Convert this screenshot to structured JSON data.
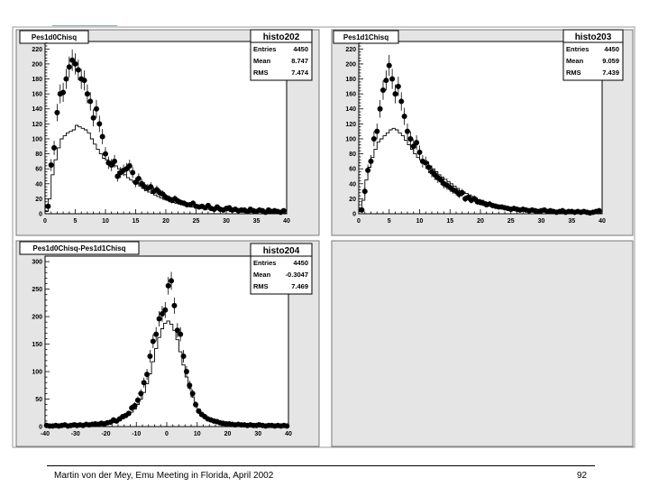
{
  "footer": {
    "text": "Martin von der Mey, Emu Meeting in Florida, April 2002",
    "page": "92"
  },
  "colors": {
    "pad_bg": "#e5e5e5",
    "frame_bg": "#ffffff",
    "ink": "#000000"
  },
  "chart_data": [
    {
      "type": "histogram",
      "title": "Pes1d0Chisq",
      "stats": {
        "name": "histo202",
        "labels": [
          "Entries",
          "Mean",
          "RMS"
        ],
        "values": [
          "4450",
          "8.747",
          "7.474"
        ]
      },
      "xlim": [
        0,
        40
      ],
      "ylim": [
        0,
        230
      ],
      "xticks": [
        0,
        5,
        10,
        15,
        20,
        25,
        30,
        35,
        40
      ],
      "yticks": [
        0,
        20,
        40,
        60,
        80,
        100,
        120,
        140,
        160,
        180,
        200,
        220
      ],
      "series": [
        {
          "name": "histogram",
          "bin_width": 0.5,
          "x": [
            0,
            0.5,
            1,
            1.5,
            2,
            2.5,
            3,
            3.5,
            4,
            4.5,
            5,
            5.5,
            6,
            6.5,
            7,
            7.5,
            8,
            8.5,
            9,
            9.5,
            10,
            10.5,
            11,
            11.5,
            12,
            12.5,
            13,
            13.5,
            14,
            14.5,
            15,
            15.5,
            16,
            16.5,
            17,
            17.5,
            18,
            18.5,
            19,
            19.5,
            20,
            20.5,
            21,
            21.5,
            22,
            22.5,
            23,
            23.5,
            24,
            24.5,
            25,
            25.5,
            26,
            26.5,
            27,
            27.5,
            28,
            28.5,
            29,
            29.5,
            30,
            30.5,
            31,
            31.5,
            32,
            32.5,
            33,
            33.5,
            34,
            34.5,
            35,
            35.5,
            36,
            36.5,
            37,
            37.5,
            38,
            38.5,
            39,
            39.5
          ],
          "y": [
            3,
            20,
            52,
            72,
            88,
            100,
            104,
            108,
            110,
            112,
            118,
            116,
            114,
            112,
            108,
            100,
            93,
            86,
            80,
            74,
            72,
            70,
            67,
            64,
            60,
            56,
            52,
            48,
            45,
            42,
            40,
            37,
            34,
            31,
            29,
            27,
            25,
            23,
            21,
            19,
            18,
            16,
            15,
            14,
            13,
            12,
            11,
            10,
            9,
            9,
            8,
            7,
            7,
            6,
            6,
            5,
            5,
            5,
            4,
            4,
            4,
            3,
            3,
            3,
            3,
            2,
            2,
            2,
            2,
            2,
            2,
            2,
            1,
            1,
            1,
            1,
            1,
            1,
            1,
            1
          ]
        },
        {
          "name": "points",
          "x": [
            0.5,
            1,
            1.5,
            2,
            2.5,
            3,
            3.5,
            4,
            4.5,
            5,
            5.5,
            6,
            6.5,
            7,
            7.5,
            8,
            8.5,
            9,
            9.5,
            10,
            10.5,
            11,
            11.5,
            12,
            12.5,
            13,
            13.5,
            14,
            14.5,
            15,
            15.5,
            16,
            16.5,
            17,
            17.5,
            18,
            18.5,
            19,
            19.5,
            20,
            20.5,
            21,
            21.5,
            22,
            22.5,
            23,
            23.5,
            24,
            24.5,
            25,
            25.5,
            26,
            26.5,
            27,
            27.5,
            28,
            28.5,
            29,
            29.5,
            30,
            30.5,
            31,
            31.5,
            32,
            32.5,
            33,
            33.5,
            34,
            34.5,
            35,
            35.5,
            36,
            36.5,
            37,
            37.5,
            38,
            38.5,
            39,
            39.5
          ],
          "y": [
            10,
            65,
            88,
            135,
            160,
            162,
            180,
            196,
            205,
            200,
            192,
            180,
            178,
            160,
            150,
            128,
            140,
            120,
            103,
            80,
            68,
            65,
            70,
            50,
            55,
            58,
            60,
            64,
            55,
            42,
            47,
            40,
            36,
            34,
            36,
            30,
            32,
            28,
            26,
            22,
            20,
            18,
            20,
            17,
            15,
            14,
            12,
            12,
            14,
            10,
            9,
            10,
            8,
            11,
            7,
            6,
            9,
            6,
            5,
            7,
            8,
            5,
            6,
            4,
            5,
            5,
            3,
            6,
            4,
            3,
            5,
            4,
            2,
            5,
            3,
            4,
            3,
            2,
            4
          ]
        }
      ]
    },
    {
      "type": "histogram",
      "title": "Pes1d1Chisq",
      "stats": {
        "name": "histo203",
        "labels": [
          "Entries",
          "Mean",
          "RMS"
        ],
        "values": [
          "4450",
          "9.059",
          "7.439"
        ]
      },
      "xlim": [
        0,
        40
      ],
      "ylim": [
        0,
        230
      ],
      "xticks": [
        0,
        5,
        10,
        15,
        20,
        25,
        30,
        35,
        40
      ],
      "yticks": [
        0,
        20,
        40,
        60,
        80,
        100,
        120,
        140,
        160,
        180,
        200,
        220
      ],
      "series": [
        {
          "name": "histogram",
          "bin_width": 0.5,
          "x": [
            0,
            0.5,
            1,
            1.5,
            2,
            2.5,
            3,
            3.5,
            4,
            4.5,
            5,
            5.5,
            6,
            6.5,
            7,
            7.5,
            8,
            8.5,
            9,
            9.5,
            10,
            10.5,
            11,
            11.5,
            12,
            12.5,
            13,
            13.5,
            14,
            14.5,
            15,
            15.5,
            16,
            16.5,
            17,
            17.5,
            18,
            18.5,
            19,
            19.5,
            20,
            20.5,
            21,
            21.5,
            22,
            22.5,
            23,
            23.5,
            24,
            24.5,
            25,
            25.5,
            26,
            26.5,
            27,
            27.5,
            28,
            28.5,
            29,
            29.5,
            30,
            30.5,
            31,
            31.5,
            32,
            32.5,
            33,
            33.5,
            34,
            34.5,
            35,
            35.5,
            36,
            36.5,
            37,
            37.5,
            38,
            38.5,
            39,
            39.5
          ],
          "y": [
            3,
            18,
            45,
            62,
            75,
            86,
            96,
            100,
            104,
            108,
            112,
            114,
            112,
            108,
            104,
            98,
            92,
            86,
            80,
            75,
            72,
            70,
            68,
            64,
            60,
            56,
            52,
            49,
            46,
            43,
            40,
            37,
            34,
            31,
            29,
            27,
            25,
            23,
            21,
            19,
            18,
            16,
            15,
            14,
            13,
            12,
            11,
            10,
            9,
            9,
            8,
            7,
            7,
            6,
            6,
            5,
            5,
            5,
            4,
            4,
            4,
            3,
            3,
            3,
            3,
            2,
            2,
            2,
            2,
            2,
            2,
            2,
            1,
            1,
            1,
            1,
            1,
            1,
            1,
            1
          ]
        },
        {
          "name": "points",
          "x": [
            0.5,
            1,
            1.5,
            2,
            2.5,
            3,
            3.5,
            4,
            4.5,
            5,
            5.5,
            6,
            6.5,
            7,
            7.5,
            8,
            8.5,
            9,
            9.5,
            10,
            10.5,
            11,
            11.5,
            12,
            12.5,
            13,
            13.5,
            14,
            14.5,
            15,
            15.5,
            16,
            16.5,
            17,
            17.5,
            18,
            18.5,
            19,
            19.5,
            20,
            20.5,
            21,
            21.5,
            22,
            22.5,
            23,
            23.5,
            24,
            24.5,
            25,
            25.5,
            26,
            26.5,
            27,
            27.5,
            28,
            28.5,
            29,
            29.5,
            30,
            30.5,
            31,
            31.5,
            32,
            32.5,
            33,
            33.5,
            34,
            34.5,
            35,
            35.5,
            36,
            36.5,
            37,
            37.5,
            38,
            38.5,
            39,
            39.5
          ],
          "y": [
            5,
            30,
            58,
            70,
            100,
            110,
            140,
            165,
            178,
            198,
            180,
            160,
            170,
            150,
            130,
            110,
            100,
            90,
            95,
            82,
            70,
            68,
            62,
            56,
            52,
            48,
            45,
            40,
            38,
            35,
            32,
            30,
            26,
            28,
            20,
            22,
            18,
            20,
            16,
            15,
            14,
            12,
            13,
            11,
            10,
            9,
            9,
            8,
            7,
            6,
            7,
            6,
            5,
            6,
            5,
            4,
            5,
            4,
            3,
            4,
            5,
            3,
            4,
            3,
            2,
            3,
            4,
            2,
            3,
            3,
            2,
            3,
            2,
            3,
            2,
            1,
            2,
            3,
            4
          ]
        }
      ]
    },
    {
      "type": "histogram",
      "title": "Pes1d0Chisq-Pes1d1Chisq",
      "stats": {
        "name": "histo204",
        "labels": [
          "Entries",
          "Mean",
          "RMS"
        ],
        "values": [
          "4450",
          "-0.3047",
          "7.469"
        ]
      },
      "xlim": [
        -40,
        40
      ],
      "ylim": [
        0,
        310
      ],
      "xticks": [
        -40,
        -30,
        -20,
        -10,
        0,
        10,
        20,
        30,
        40
      ],
      "yticks": [
        0,
        50,
        100,
        150,
        200,
        250,
        300
      ],
      "series": [
        {
          "name": "histogram",
          "bin_width": 1,
          "x": [
            -40,
            -39,
            -38,
            -37,
            -36,
            -35,
            -34,
            -33,
            -32,
            -31,
            -30,
            -29,
            -28,
            -27,
            -26,
            -25,
            -24,
            -23,
            -22,
            -21,
            -20,
            -19,
            -18,
            -17,
            -16,
            -15,
            -14,
            -13,
            -12,
            -11,
            -10,
            -9,
            -8,
            -7,
            -6,
            -5,
            -4,
            -3,
            -2,
            -1,
            0,
            1,
            2,
            3,
            4,
            5,
            6,
            7,
            8,
            9,
            10,
            11,
            12,
            13,
            14,
            15,
            16,
            17,
            18,
            19,
            20,
            21,
            22,
            23,
            24,
            25,
            26,
            27,
            28,
            29,
            30,
            31,
            32,
            33,
            34,
            35,
            36,
            37,
            38,
            39
          ],
          "y": [
            1,
            1,
            1,
            1,
            1,
            1,
            1,
            1,
            1,
            1,
            1,
            1,
            1,
            2,
            2,
            2,
            2,
            3,
            3,
            4,
            5,
            6,
            7,
            9,
            11,
            14,
            17,
            21,
            26,
            32,
            40,
            50,
            62,
            78,
            96,
            118,
            142,
            162,
            178,
            188,
            192,
            186,
            175,
            158,
            136,
            112,
            90,
            70,
            54,
            42,
            32,
            25,
            19,
            15,
            12,
            10,
            8,
            6,
            5,
            4,
            4,
            3,
            3,
            2,
            2,
            2,
            2,
            1,
            1,
            1,
            1,
            1,
            1,
            1,
            1,
            1,
            1,
            1,
            1,
            1
          ]
        },
        {
          "name": "points",
          "x": [
            -39.5,
            -38.5,
            -37.5,
            -36.5,
            -35.5,
            -34.5,
            -33.5,
            -32.5,
            -31.5,
            -30.5,
            -29.5,
            -28.5,
            -27.5,
            -26.5,
            -25.5,
            -24.5,
            -23.5,
            -22.5,
            -21.5,
            -20.5,
            -19.5,
            -18.5,
            -17.5,
            -16.5,
            -15.5,
            -14.5,
            -13.5,
            -12.5,
            -11.5,
            -10.5,
            -9.5,
            -8.5,
            -7.5,
            -6.5,
            -5.5,
            -4.5,
            -3.5,
            -2.5,
            -1.5,
            -0.5,
            0.5,
            1.5,
            2.5,
            3.5,
            4.5,
            5.5,
            6.5,
            7.5,
            8.5,
            9.5,
            10.5,
            11.5,
            12.5,
            13.5,
            14.5,
            15.5,
            16.5,
            17.5,
            18.5,
            19.5,
            20.5,
            21.5,
            22.5,
            23.5,
            24.5,
            25.5,
            26.5,
            27.5,
            28.5,
            29.5,
            30.5,
            31.5,
            32.5,
            33.5,
            34.5,
            35.5,
            36.5,
            37.5,
            38.5,
            39.5
          ],
          "y": [
            2,
            1,
            1,
            2,
            1,
            2,
            3,
            1,
            2,
            3,
            2,
            3,
            2,
            4,
            3,
            4,
            5,
            4,
            6,
            5,
            7,
            8,
            12,
            10,
            14,
            18,
            20,
            24,
            34,
            38,
            48,
            60,
            80,
            95,
            128,
            155,
            168,
            196,
            205,
            212,
            256,
            265,
            220,
            175,
            168,
            128,
            100,
            75,
            60,
            40,
            28,
            22,
            18,
            14,
            12,
            10,
            9,
            7,
            6,
            5,
            5,
            4,
            3,
            4,
            3,
            3,
            2,
            3,
            2,
            2,
            3,
            2,
            1,
            2,
            2,
            1,
            2,
            1,
            2,
            1
          ]
        }
      ]
    }
  ]
}
